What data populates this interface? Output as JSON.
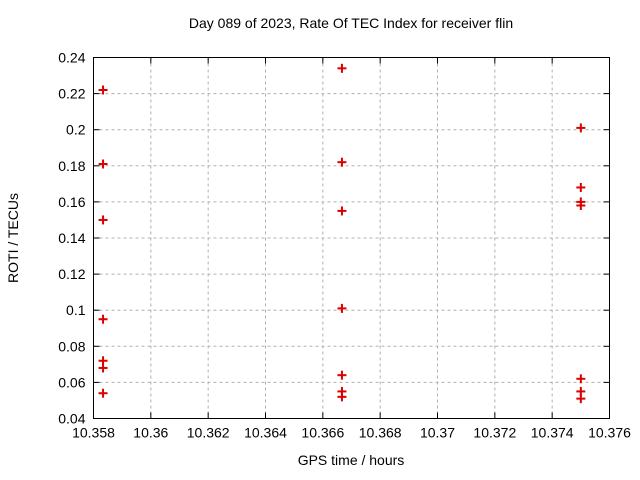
{
  "title": "Day 089 of 2023, Rate Of TEC Index for receiver flin",
  "colors": {
    "background": "#ffffff",
    "marker": "#dd0000",
    "grid": "#b0b0b0",
    "axis": "#000000",
    "text": "#000000"
  },
  "chart_data": {
    "type": "scatter",
    "title": "Day 089 of 2023, Rate Of TEC Index for receiver flin",
    "xlabel": "GPS time / hours",
    "ylabel": "ROTI / TECUs",
    "xlim": [
      10.358,
      10.376
    ],
    "ylim": [
      0.04,
      0.24
    ],
    "grid": true,
    "legend": "none",
    "marker": {
      "shape": "plus",
      "color": "#dd0000",
      "size": 9,
      "stroke_width": 2
    },
    "xticks": {
      "values": [
        10.358,
        10.36,
        10.362,
        10.364,
        10.366,
        10.368,
        10.37,
        10.372,
        10.374,
        10.376
      ],
      "labels": [
        "10.358",
        "10.36",
        "10.362",
        "10.364",
        "10.366",
        "10.368",
        "10.37",
        "10.372",
        "10.374",
        "10.376"
      ]
    },
    "yticks": {
      "values": [
        0.04,
        0.06,
        0.08,
        0.1,
        0.12,
        0.14,
        0.16,
        0.18,
        0.2,
        0.22,
        0.24
      ],
      "labels": [
        "0.04",
        "0.06",
        "0.08",
        "0.1",
        "0.12",
        "0.14",
        "0.16",
        "0.18",
        "0.2",
        "0.22",
        "0.24"
      ]
    },
    "series": [
      {
        "name": "ROTI",
        "points": [
          [
            10.358333,
            0.222
          ],
          [
            10.358333,
            0.181
          ],
          [
            10.358333,
            0.15
          ],
          [
            10.358333,
            0.095
          ],
          [
            10.358333,
            0.072
          ],
          [
            10.358333,
            0.068
          ],
          [
            10.358333,
            0.054
          ],
          [
            10.366667,
            0.234
          ],
          [
            10.366667,
            0.182
          ],
          [
            10.366667,
            0.155
          ],
          [
            10.366667,
            0.101
          ],
          [
            10.366667,
            0.064
          ],
          [
            10.366667,
            0.055
          ],
          [
            10.366667,
            0.052
          ],
          [
            10.375,
            0.201
          ],
          [
            10.375,
            0.168
          ],
          [
            10.375,
            0.16
          ],
          [
            10.375,
            0.158
          ],
          [
            10.375,
            0.062
          ],
          [
            10.375,
            0.055
          ],
          [
            10.375,
            0.051
          ]
        ]
      }
    ]
  }
}
